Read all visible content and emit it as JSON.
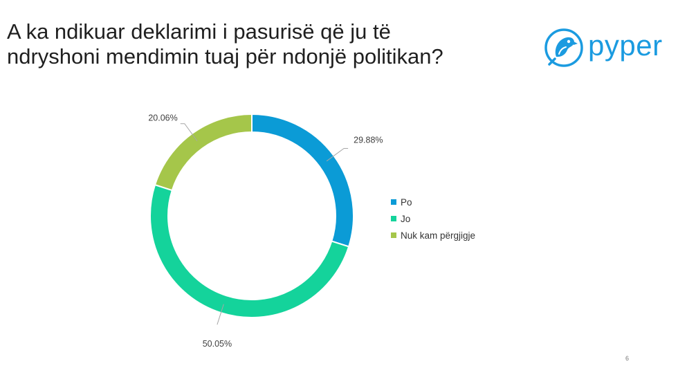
{
  "title_lines": [
    "A ka ndikuar deklarimi i pasurisë që ju të",
    "ndryshoni mendimin tuaj për ndonjë politikan?"
  ],
  "logo": {
    "text": "pyper",
    "color": "#1b9be0",
    "icon": "parrot-bird-logo"
  },
  "page_number": "6",
  "chart_data": {
    "type": "pie",
    "donut": true,
    "categories": [
      "Po",
      "Jo",
      "Nuk kam përgjigje"
    ],
    "values": [
      29.88,
      50.05,
      20.06
    ],
    "data_labels": [
      "29.88%",
      "50.05%",
      "20.06%"
    ],
    "colors": [
      "#0b9bd6",
      "#14d39b",
      "#a5c64a"
    ],
    "legend_position": "right",
    "title": ""
  }
}
